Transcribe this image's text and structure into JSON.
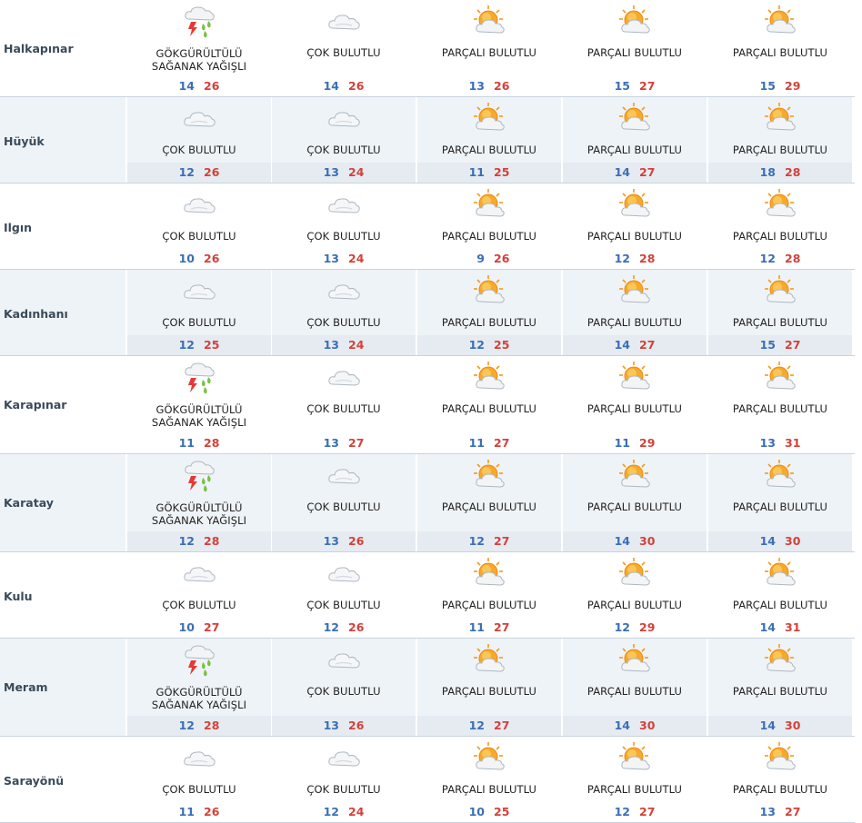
{
  "colors": {
    "min": "#3a6fb5",
    "max": "#d4413a",
    "shade": "#eef3f7"
  },
  "icon_names": {
    "storm": "thunderstorm-rain-icon",
    "cloud": "cloud-icon",
    "partly": "sun-behind-cloud-icon"
  },
  "rows": [
    {
      "city": "Halkapınar",
      "days": [
        {
          "icon": "storm",
          "desc": [
            "GÖKGÜRÜLTÜLÜ",
            "SAĞANAK YAĞIŞLI"
          ],
          "min": "14",
          "max": "26"
        },
        {
          "icon": "cloud",
          "desc": [
            "ÇOK BULUTLU"
          ],
          "min": "14",
          "max": "26"
        },
        {
          "icon": "partly",
          "desc": [
            "PARÇALI BULUTLU"
          ],
          "min": "13",
          "max": "26"
        },
        {
          "icon": "partly",
          "desc": [
            "PARÇALI BULUTLU"
          ],
          "min": "15",
          "max": "27"
        },
        {
          "icon": "partly",
          "desc": [
            "PARÇALI BULUTLU"
          ],
          "min": "15",
          "max": "29"
        }
      ]
    },
    {
      "city": "Hüyük",
      "days": [
        {
          "icon": "cloud",
          "desc": [
            "ÇOK BULUTLU"
          ],
          "min": "12",
          "max": "26"
        },
        {
          "icon": "cloud",
          "desc": [
            "ÇOK BULUTLU"
          ],
          "min": "13",
          "max": "24"
        },
        {
          "icon": "partly",
          "desc": [
            "PARÇALI BULUTLU"
          ],
          "min": "11",
          "max": "25"
        },
        {
          "icon": "partly",
          "desc": [
            "PARÇALI BULUTLU"
          ],
          "min": "14",
          "max": "27"
        },
        {
          "icon": "partly",
          "desc": [
            "PARÇALI BULUTLU"
          ],
          "min": "18",
          "max": "28"
        }
      ]
    },
    {
      "city": "Ilgın",
      "days": [
        {
          "icon": "cloud",
          "desc": [
            "ÇOK BULUTLU"
          ],
          "min": "10",
          "max": "26"
        },
        {
          "icon": "cloud",
          "desc": [
            "ÇOK BULUTLU"
          ],
          "min": "13",
          "max": "24"
        },
        {
          "icon": "partly",
          "desc": [
            "PARÇALI BULUTLU"
          ],
          "min": "9",
          "max": "26"
        },
        {
          "icon": "partly",
          "desc": [
            "PARÇALI BULUTLU"
          ],
          "min": "12",
          "max": "28"
        },
        {
          "icon": "partly",
          "desc": [
            "PARÇALI BULUTLU"
          ],
          "min": "12",
          "max": "28"
        }
      ]
    },
    {
      "city": "Kadınhanı",
      "days": [
        {
          "icon": "cloud",
          "desc": [
            "ÇOK BULUTLU"
          ],
          "min": "12",
          "max": "25"
        },
        {
          "icon": "cloud",
          "desc": [
            "ÇOK BULUTLU"
          ],
          "min": "13",
          "max": "24"
        },
        {
          "icon": "partly",
          "desc": [
            "PARÇALI BULUTLU"
          ],
          "min": "12",
          "max": "25"
        },
        {
          "icon": "partly",
          "desc": [
            "PARÇALI BULUTLU"
          ],
          "min": "14",
          "max": "27"
        },
        {
          "icon": "partly",
          "desc": [
            "PARÇALI BULUTLU"
          ],
          "min": "15",
          "max": "27"
        }
      ]
    },
    {
      "city": "Karapınar",
      "days": [
        {
          "icon": "storm",
          "desc": [
            "GÖKGÜRÜLTÜLÜ",
            "SAĞANAK YAĞIŞLI"
          ],
          "min": "11",
          "max": "28"
        },
        {
          "icon": "cloud",
          "desc": [
            "ÇOK BULUTLU"
          ],
          "min": "13",
          "max": "27"
        },
        {
          "icon": "partly",
          "desc": [
            "PARÇALI BULUTLU"
          ],
          "min": "11",
          "max": "27"
        },
        {
          "icon": "partly",
          "desc": [
            "PARÇALI BULUTLU"
          ],
          "min": "11",
          "max": "29"
        },
        {
          "icon": "partly",
          "desc": [
            "PARÇALI BULUTLU"
          ],
          "min": "13",
          "max": "31"
        }
      ]
    },
    {
      "city": "Karatay",
      "days": [
        {
          "icon": "storm",
          "desc": [
            "GÖKGÜRÜLTÜLÜ",
            "SAĞANAK YAĞIŞLI"
          ],
          "min": "12",
          "max": "28"
        },
        {
          "icon": "cloud",
          "desc": [
            "ÇOK BULUTLU"
          ],
          "min": "13",
          "max": "26"
        },
        {
          "icon": "partly",
          "desc": [
            "PARÇALI BULUTLU"
          ],
          "min": "12",
          "max": "27"
        },
        {
          "icon": "partly",
          "desc": [
            "PARÇALI BULUTLU"
          ],
          "min": "14",
          "max": "30"
        },
        {
          "icon": "partly",
          "desc": [
            "PARÇALI BULUTLU"
          ],
          "min": "14",
          "max": "30"
        }
      ]
    },
    {
      "city": "Kulu",
      "days": [
        {
          "icon": "cloud",
          "desc": [
            "ÇOK BULUTLU"
          ],
          "min": "10",
          "max": "27"
        },
        {
          "icon": "cloud",
          "desc": [
            "ÇOK BULUTLU"
          ],
          "min": "12",
          "max": "26"
        },
        {
          "icon": "partly",
          "desc": [
            "PARÇALI BULUTLU"
          ],
          "min": "11",
          "max": "27"
        },
        {
          "icon": "partly",
          "desc": [
            "PARÇALI BULUTLU"
          ],
          "min": "12",
          "max": "29"
        },
        {
          "icon": "partly",
          "desc": [
            "PARÇALI BULUTLU"
          ],
          "min": "14",
          "max": "31"
        }
      ]
    },
    {
      "city": "Meram",
      "days": [
        {
          "icon": "storm",
          "desc": [
            "GÖKGÜRÜLTÜLÜ",
            "SAĞANAK YAĞIŞLI"
          ],
          "min": "12",
          "max": "28"
        },
        {
          "icon": "cloud",
          "desc": [
            "ÇOK BULUTLU"
          ],
          "min": "13",
          "max": "26"
        },
        {
          "icon": "partly",
          "desc": [
            "PARÇALI BULUTLU"
          ],
          "min": "12",
          "max": "27"
        },
        {
          "icon": "partly",
          "desc": [
            "PARÇALI BULUTLU"
          ],
          "min": "14",
          "max": "30"
        },
        {
          "icon": "partly",
          "desc": [
            "PARÇALI BULUTLU"
          ],
          "min": "14",
          "max": "30"
        }
      ]
    },
    {
      "city": "Sarayönü",
      "days": [
        {
          "icon": "cloud",
          "desc": [
            "ÇOK BULUTLU"
          ],
          "min": "11",
          "max": "26"
        },
        {
          "icon": "cloud",
          "desc": [
            "ÇOK BULUTLU"
          ],
          "min": "12",
          "max": "24"
        },
        {
          "icon": "partly",
          "desc": [
            "PARÇALI BULUTLU"
          ],
          "min": "10",
          "max": "25"
        },
        {
          "icon": "partly",
          "desc": [
            "PARÇALI BULUTLU"
          ],
          "min": "12",
          "max": "27"
        },
        {
          "icon": "partly",
          "desc": [
            "PARÇALI BULUTLU"
          ],
          "min": "13",
          "max": "27"
        }
      ]
    }
  ]
}
